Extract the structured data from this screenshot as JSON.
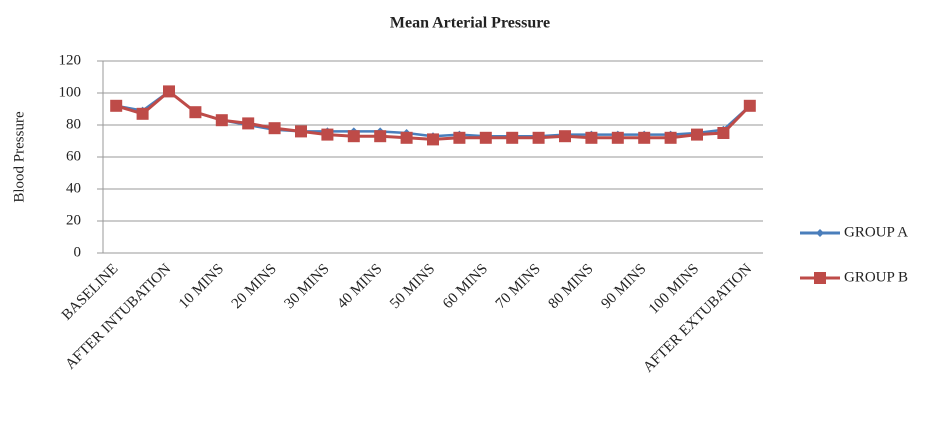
{
  "chart_data": {
    "type": "line",
    "title": "Mean Arterial Pressure",
    "y_label": "Blood Pressure",
    "categories": [
      "BASELINE",
      null,
      "AFTER INTUBATION",
      null,
      "10 MINS",
      null,
      "20 MINS",
      null,
      "30 MINS",
      null,
      "40 MINS",
      null,
      "50 MINS",
      null,
      "60 MINS",
      null,
      "70 MINS",
      null,
      "80 MINS",
      null,
      "90 MINS",
      null,
      "100 MINS",
      null,
      "AFTER EXTUBATION"
    ],
    "series": [
      {
        "name": "GROUP A",
        "color": "#4a7ebb",
        "values": [
          92,
          89,
          101,
          88,
          83,
          80,
          77,
          76,
          76,
          76,
          76,
          75,
          73,
          74,
          73,
          73,
          73,
          74,
          74,
          74,
          74,
          74,
          75,
          77,
          92
        ]
      },
      {
        "name": "GROUP B",
        "color": "#be4b48",
        "values": [
          92,
          87,
          101,
          88,
          83,
          81,
          78,
          76,
          74,
          73,
          73,
          72,
          71,
          72,
          72,
          72,
          72,
          73,
          72,
          72,
          72,
          72,
          74,
          75,
          92
        ]
      }
    ],
    "ylim": [
      0,
      120
    ],
    "yticks": [
      0,
      20,
      40,
      60,
      80,
      100,
      120
    ],
    "grid": true,
    "legend": "right"
  }
}
